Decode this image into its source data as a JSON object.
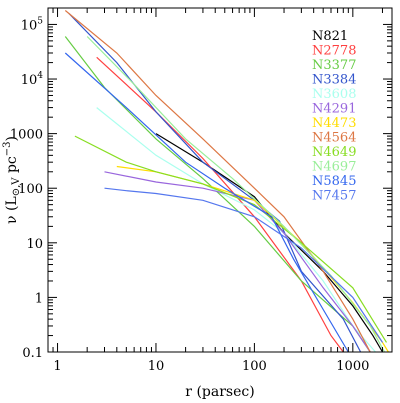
{
  "chart_data": {
    "type": "line",
    "xscale": "log",
    "yscale": "log",
    "xlim": [
      0.8,
      2500
    ],
    "ylim": [
      0.1,
      200000
    ],
    "xlabel": "r (parsec)",
    "ylabel_main": "ν (L",
    "ylabel_sub": "⊙,V",
    "ylabel_rest": " pc",
    "ylabel_sup": "−3",
    "ylabel_close": ")",
    "x_ticks": [
      {
        "v": 1,
        "label": "1"
      },
      {
        "v": 10,
        "label": "10"
      },
      {
        "v": 100,
        "label": "100"
      },
      {
        "v": 1000,
        "label": "1000"
      }
    ],
    "y_ticks": [
      {
        "v": 0.1,
        "label": "0.1"
      },
      {
        "v": 1,
        "label": "1"
      },
      {
        "v": 10,
        "label": "10"
      },
      {
        "v": 100,
        "label": "100"
      },
      {
        "v": 1000,
        "label": "1000"
      },
      {
        "v": 10000,
        "label": "10",
        "sup": "4"
      },
      {
        "v": 100000,
        "label": "10",
        "sup": "5"
      }
    ],
    "legend_position": "top-right",
    "series": [
      {
        "name": "N821",
        "color": "#000000",
        "points": [
          [
            10,
            1000
          ],
          [
            30,
            300
          ],
          [
            100,
            70
          ],
          [
            200,
            15
          ],
          [
            500,
            3
          ],
          [
            1000,
            0.7
          ],
          [
            1600,
            0.2
          ],
          [
            2000,
            0.1
          ]
        ]
      },
      {
        "name": "N2778",
        "color": "#ff4040",
        "points": [
          [
            2.5,
            25000
          ],
          [
            10,
            2500
          ],
          [
            30,
            350
          ],
          [
            100,
            30
          ],
          [
            300,
            2
          ],
          [
            600,
            0.2
          ],
          [
            800,
            0.1
          ]
        ]
      },
      {
        "name": "N3377",
        "color": "#66cc44",
        "points": [
          [
            1.2,
            60000
          ],
          [
            3,
            7000
          ],
          [
            10,
            800
          ],
          [
            30,
            150
          ],
          [
            100,
            20
          ],
          [
            300,
            2
          ],
          [
            1000,
            0.3
          ],
          [
            1500,
            0.1
          ]
        ]
      },
      {
        "name": "N3384",
        "color": "#3355cc",
        "points": [
          [
            1.3,
            160000
          ],
          [
            4,
            20000
          ],
          [
            10,
            2500
          ],
          [
            30,
            300
          ],
          [
            100,
            60
          ],
          [
            180,
            25
          ],
          [
            300,
            3
          ],
          [
            800,
            0.4
          ],
          [
            1200,
            0.1
          ]
        ]
      },
      {
        "name": "N3608",
        "color": "#aaffee",
        "points": [
          [
            2.5,
            3000
          ],
          [
            10,
            400
          ],
          [
            30,
            120
          ],
          [
            100,
            40
          ],
          [
            200,
            15
          ],
          [
            500,
            2
          ],
          [
            1000,
            0.3
          ],
          [
            1700,
            0.1
          ]
        ]
      },
      {
        "name": "N4291",
        "color": "#9966dd",
        "points": [
          [
            3,
            200
          ],
          [
            10,
            130
          ],
          [
            30,
            100
          ],
          [
            100,
            60
          ],
          [
            200,
            15
          ],
          [
            500,
            1.5
          ],
          [
            1000,
            0.3
          ],
          [
            1500,
            0.1
          ]
        ]
      },
      {
        "name": "N4473",
        "color": "#ffdd00",
        "points": [
          [
            4,
            250
          ],
          [
            10,
            200
          ],
          [
            30,
            120
          ],
          [
            100,
            60
          ],
          [
            300,
            10
          ],
          [
            1000,
            0.8
          ],
          [
            2000,
            0.15
          ],
          [
            2300,
            0.1
          ]
        ]
      },
      {
        "name": "N4564",
        "color": "#dd7744",
        "points": [
          [
            1.2,
            180000
          ],
          [
            4,
            30000
          ],
          [
            10,
            5000
          ],
          [
            30,
            800
          ],
          [
            100,
            100
          ],
          [
            200,
            30
          ],
          [
            500,
            3
          ],
          [
            1000,
            0.4
          ],
          [
            1500,
            0.1
          ]
        ]
      },
      {
        "name": "N4649",
        "color": "#88dd22",
        "points": [
          [
            1.5,
            900
          ],
          [
            5,
            300
          ],
          [
            10,
            200
          ],
          [
            30,
            120
          ],
          [
            100,
            50
          ],
          [
            300,
            10
          ],
          [
            1000,
            1.5
          ],
          [
            2200,
            0.15
          ]
        ]
      },
      {
        "name": "N4697",
        "color": "#99ee99",
        "points": [
          [
            2,
            60000
          ],
          [
            6,
            8000
          ],
          [
            20,
            800
          ],
          [
            60,
            150
          ],
          [
            200,
            20
          ],
          [
            600,
            2.5
          ],
          [
            1500,
            0.3
          ],
          [
            2100,
            0.1
          ]
        ]
      },
      {
        "name": "N5845",
        "color": "#3366ee",
        "points": [
          [
            1.2,
            30000
          ],
          [
            5,
            3000
          ],
          [
            20,
            300
          ],
          [
            50,
            100
          ],
          [
            150,
            30
          ],
          [
            250,
            5
          ],
          [
            500,
            0.6
          ],
          [
            900,
            0.1
          ]
        ]
      },
      {
        "name": "N7457",
        "color": "#5577ee",
        "points": [
          [
            3,
            100
          ],
          [
            5,
            90
          ],
          [
            10,
            80
          ],
          [
            30,
            60
          ],
          [
            100,
            30
          ],
          [
            300,
            8
          ],
          [
            1000,
            1
          ],
          [
            2000,
            0.15
          ]
        ]
      }
    ]
  }
}
